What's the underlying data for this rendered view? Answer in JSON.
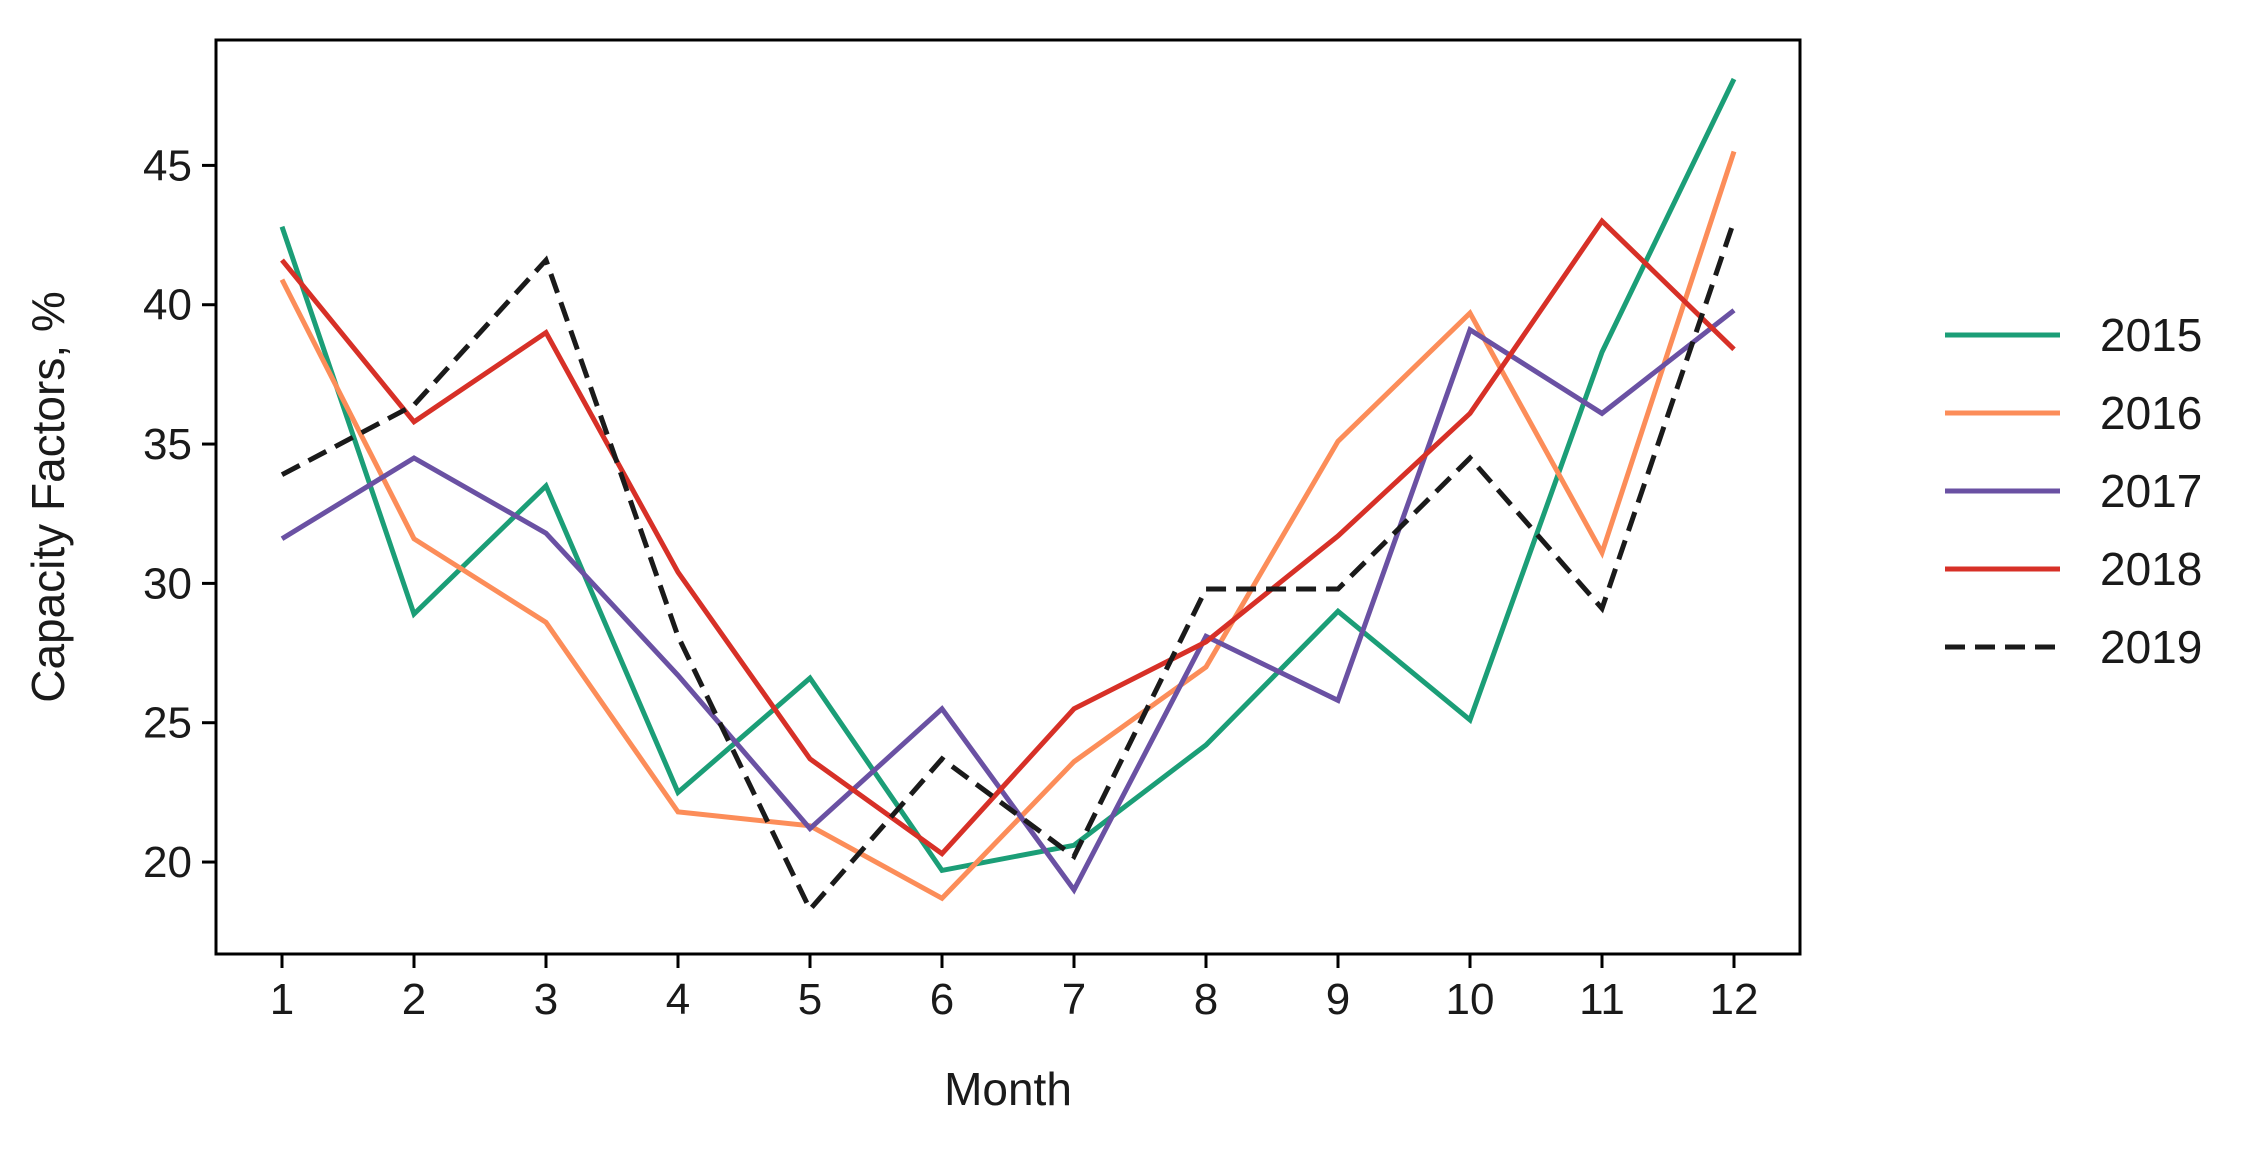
{
  "chart_data": {
    "type": "line",
    "title": "",
    "xlabel": "Month",
    "ylabel": "Capacity Factors, %",
    "x": [
      1,
      2,
      3,
      4,
      5,
      6,
      7,
      8,
      9,
      10,
      11,
      12
    ],
    "x_ticks": [
      "1",
      "2",
      "3",
      "4",
      "5",
      "6",
      "7",
      "8",
      "9",
      "10",
      "11",
      "12"
    ],
    "xlim": [
      0.5,
      12.5
    ],
    "ylim": [
      16.7,
      49.5
    ],
    "y_ticks": [
      20,
      25,
      30,
      35,
      40,
      45
    ],
    "y_tick_labels": [
      "20",
      "25",
      "30",
      "35",
      "40",
      "45"
    ],
    "grid": false,
    "legend_position": "right",
    "series": [
      {
        "name": "2015",
        "color": "#1b9e77",
        "dash": "solid",
        "values": [
          42.8,
          28.9,
          33.5,
          22.5,
          26.6,
          19.7,
          20.6,
          24.2,
          29.0,
          25.1,
          38.3,
          48.1
        ]
      },
      {
        "name": "2016",
        "color": "#fc8d59",
        "dash": "solid",
        "values": [
          40.9,
          31.6,
          28.6,
          21.8,
          21.3,
          18.7,
          23.6,
          27.0,
          35.1,
          39.7,
          31.1,
          45.5
        ]
      },
      {
        "name": "2017",
        "color": "#6a51a3",
        "dash": "solid",
        "values": [
          31.6,
          34.5,
          31.8,
          26.7,
          21.2,
          25.5,
          19.0,
          28.1,
          25.8,
          39.1,
          36.1,
          39.8
        ]
      },
      {
        "name": "2018",
        "color": "#d73027",
        "dash": "solid",
        "values": [
          41.6,
          35.8,
          39.0,
          30.4,
          23.7,
          20.3,
          25.5,
          27.9,
          31.7,
          36.1,
          43.0,
          38.4
        ]
      },
      {
        "name": "2019",
        "color": "#1a1a1a",
        "dash": "dashed",
        "values": [
          33.9,
          36.4,
          41.6,
          28.1,
          18.3,
          23.7,
          20.2,
          29.8,
          29.8,
          34.5,
          29.1,
          43.0
        ]
      }
    ]
  }
}
